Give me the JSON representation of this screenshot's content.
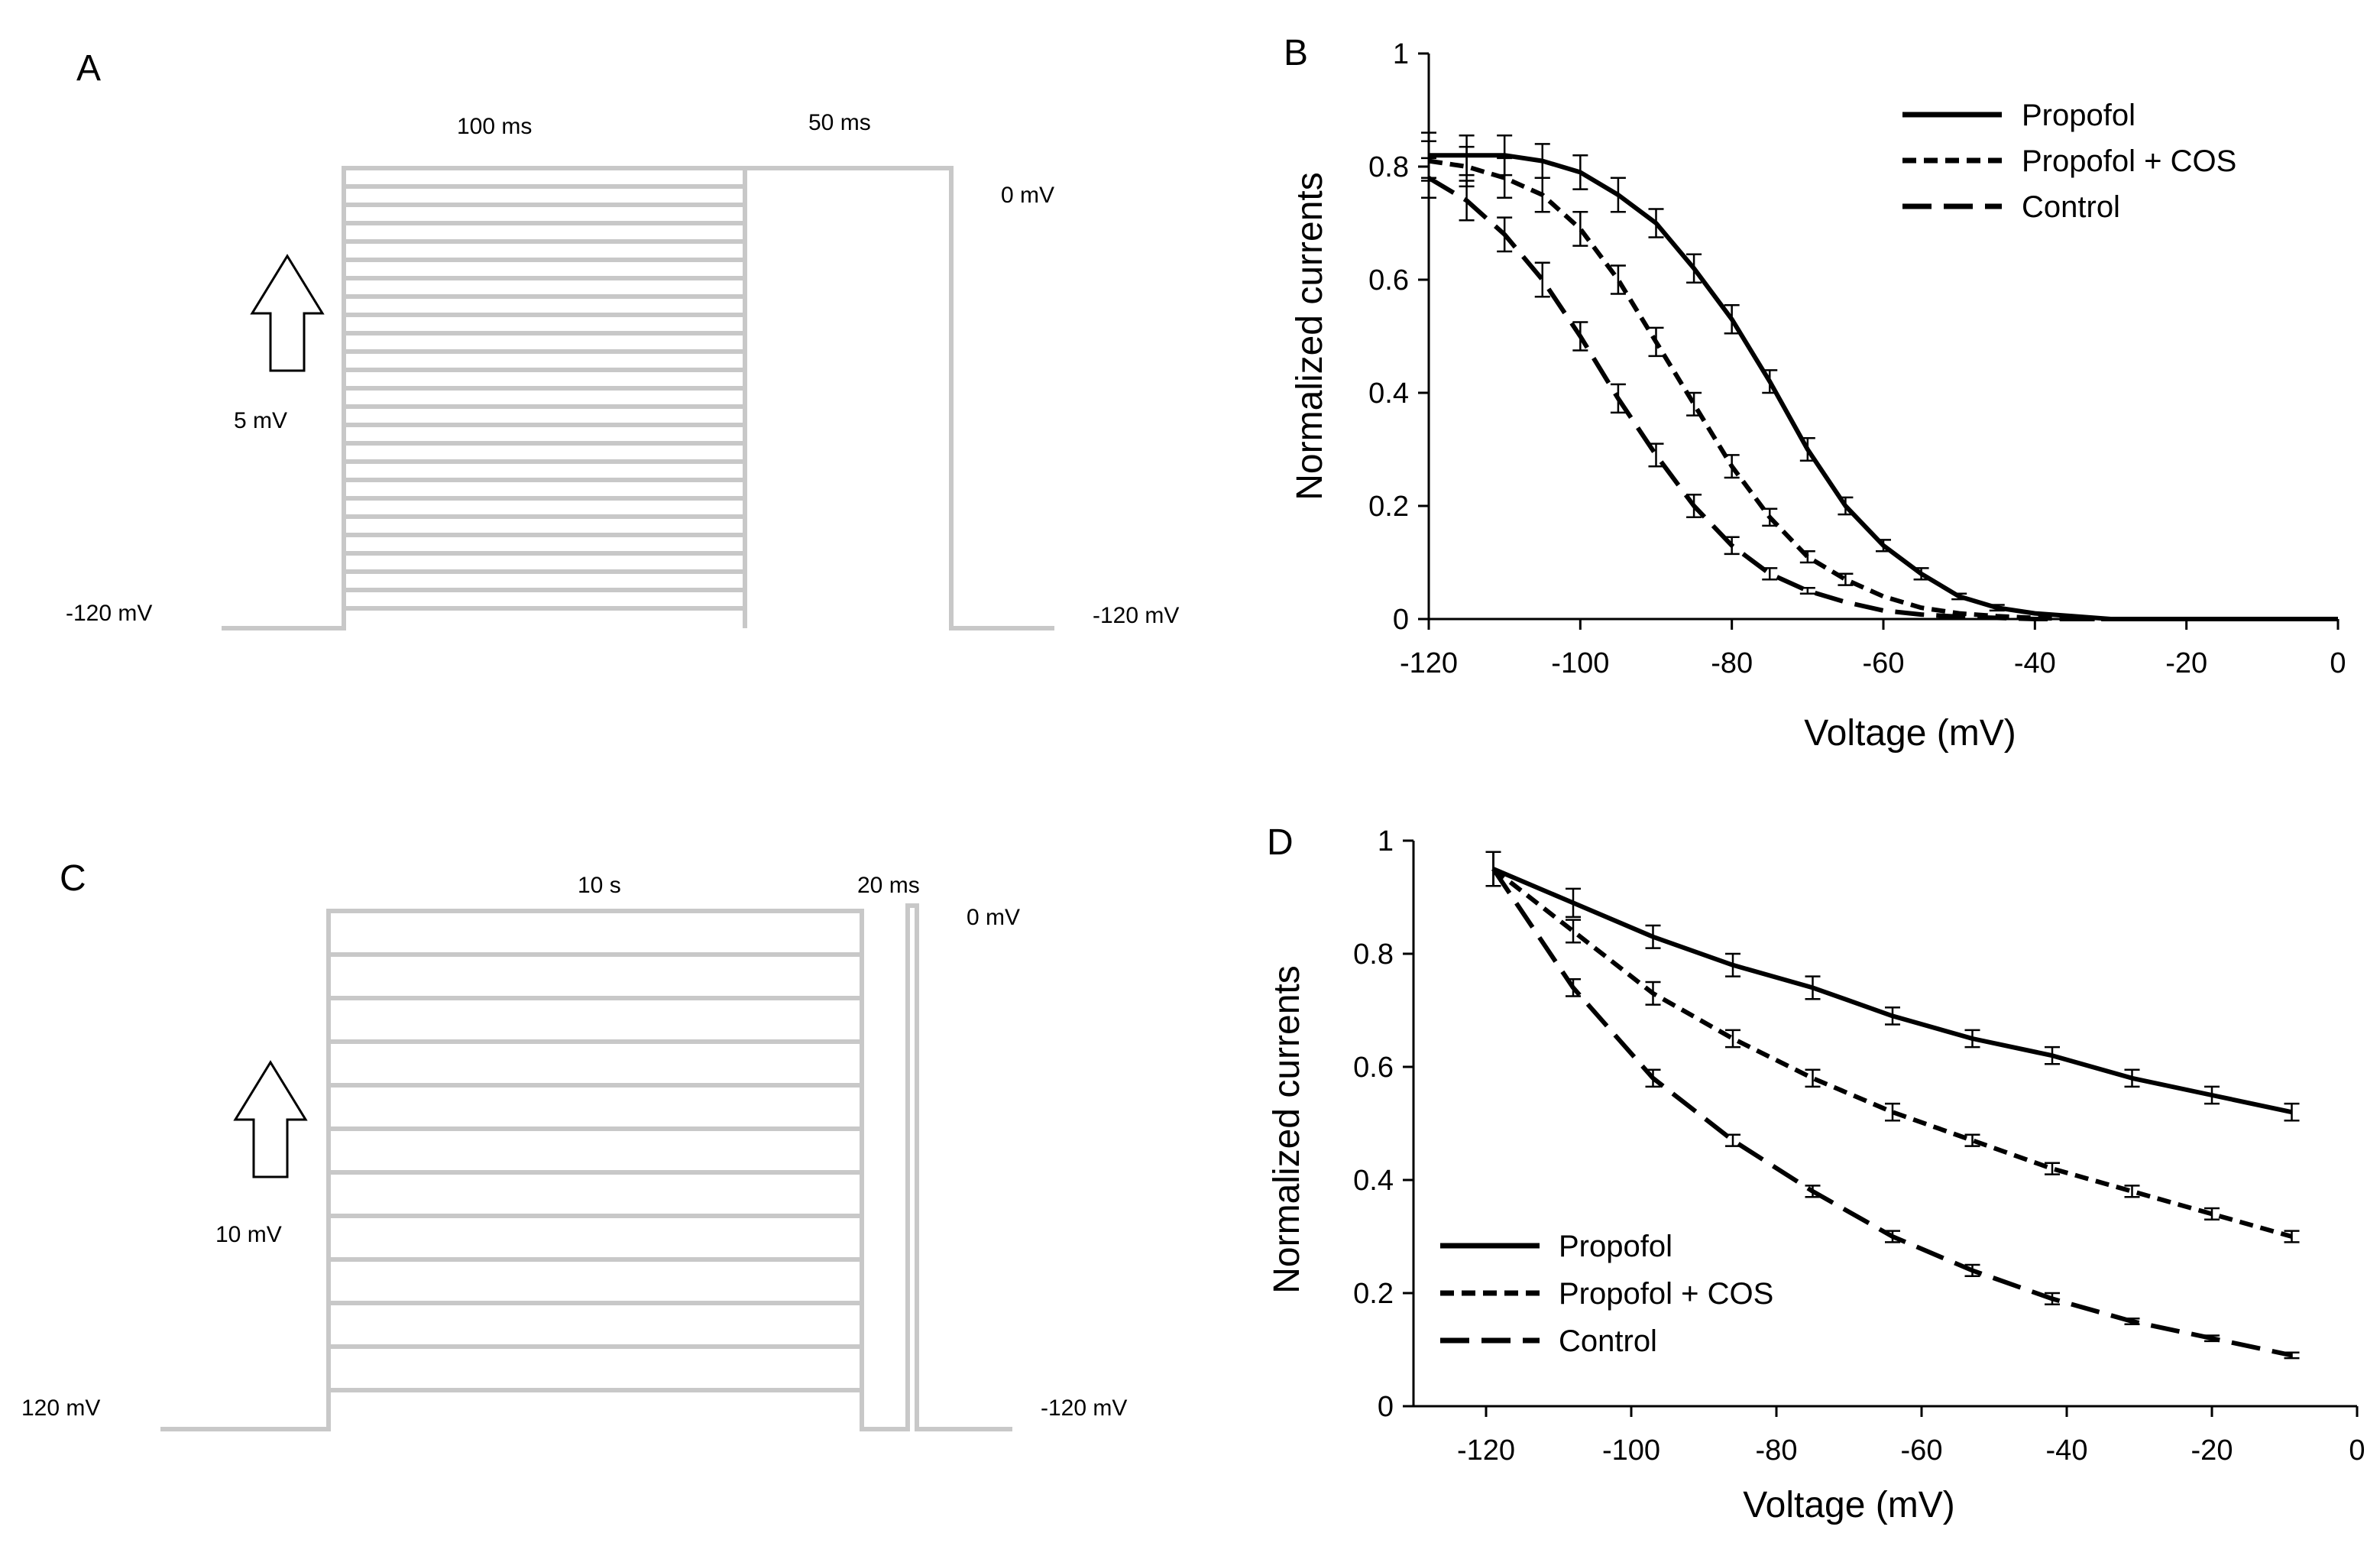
{
  "panels": {
    "A": {
      "letter": "A",
      "labels": {
        "step_duration": "100 ms",
        "test_duration": "50  ms",
        "test_potential": "0 mV",
        "step_increment": "5 mV",
        "holding_left": "-120 mV",
        "holding_right": "-120 mV"
      }
    },
    "C": {
      "letter": "C",
      "labels": {
        "step_duration": "10 s",
        "test_duration": "20 ms",
        "test_potential": "0 mV",
        "step_increment": "10 mV",
        "holding_left": "120 mV",
        "holding_right": "-120 mV"
      }
    }
  },
  "colors": {
    "trace": "#000000",
    "protocol": "#c8c8c8"
  },
  "chart_data": [
    {
      "panel": "B",
      "type": "line",
      "xlabel": "Voltage (mV)",
      "ylabel": "Normalized currents",
      "xlim": [
        -120,
        0
      ],
      "ylim": [
        0,
        1
      ],
      "xticks": [
        -120,
        -100,
        -80,
        -60,
        -40,
        -20,
        0
      ],
      "yticks": [
        0,
        0.2,
        0.4,
        0.6,
        0.8,
        1
      ],
      "legend_position": "top-right",
      "series": [
        {
          "name": "Propofol",
          "style": "solid",
          "x": [
            -120,
            -115,
            -110,
            -105,
            -100,
            -95,
            -90,
            -85,
            -80,
            -75,
            -70,
            -65,
            -60,
            -55,
            -50,
            -45,
            -40,
            -35,
            -30,
            -25,
            -20,
            -15,
            -10,
            -5,
            0
          ],
          "y": [
            0.82,
            0.82,
            0.82,
            0.81,
            0.79,
            0.75,
            0.7,
            0.62,
            0.53,
            0.42,
            0.3,
            0.2,
            0.13,
            0.08,
            0.04,
            0.02,
            0.01,
            0.005,
            0,
            0,
            0,
            0,
            0,
            0,
            0
          ],
          "error": [
            0.04,
            0.035,
            0.035,
            0.03,
            0.03,
            0.03,
            0.025,
            0.025,
            0.025,
            0.02,
            0.02,
            0.015,
            0.01,
            0.01,
            0.005,
            0.005,
            0.003,
            0.002,
            0,
            0,
            0,
            0,
            0,
            0,
            0
          ],
          "error_at": [
            -120,
            -115,
            -110,
            -105,
            -100,
            -95,
            -90,
            -85,
            -80,
            -75,
            -70,
            -65,
            -60,
            -55,
            -50,
            -45
          ]
        },
        {
          "name": "Propofol + COS",
          "style": "dashed",
          "x": [
            -120,
            -115,
            -110,
            -105,
            -100,
            -95,
            -90,
            -85,
            -80,
            -75,
            -70,
            -65,
            -60,
            -55,
            -50,
            -45,
            -40,
            -35,
            -30,
            -25,
            -20,
            -15,
            -10,
            -5,
            0
          ],
          "y": [
            0.81,
            0.8,
            0.78,
            0.75,
            0.69,
            0.6,
            0.49,
            0.38,
            0.27,
            0.18,
            0.11,
            0.07,
            0.04,
            0.02,
            0.01,
            0.005,
            0.002,
            0,
            0,
            0,
            0,
            0,
            0,
            0,
            0
          ],
          "error": [
            0.035,
            0.035,
            0.035,
            0.03,
            0.03,
            0.025,
            0.025,
            0.02,
            0.02,
            0.015,
            0.01,
            0.01,
            0.005,
            0.005,
            0.003,
            0.002,
            0,
            0,
            0,
            0,
            0,
            0,
            0,
            0,
            0
          ],
          "error_at": [
            -120,
            -115,
            -110,
            -105,
            -100,
            -95,
            -90,
            -85,
            -80,
            -75,
            -70,
            -65
          ]
        },
        {
          "name": "Control",
          "style": "long-dash",
          "x": [
            -120,
            -115,
            -110,
            -105,
            -100,
            -95,
            -90,
            -85,
            -80,
            -75,
            -70,
            -65,
            -60,
            -55,
            -50,
            -45,
            -40,
            -35,
            -30,
            -25,
            -20,
            -15,
            -10,
            -5,
            0
          ],
          "y": [
            0.78,
            0.74,
            0.68,
            0.6,
            0.5,
            0.39,
            0.29,
            0.2,
            0.13,
            0.08,
            0.05,
            0.03,
            0.015,
            0.008,
            0.004,
            0.002,
            0,
            0,
            0,
            0,
            0,
            0,
            0,
            0,
            0
          ],
          "error": [
            0.035,
            0.035,
            0.03,
            0.03,
            0.025,
            0.025,
            0.02,
            0.02,
            0.015,
            0.01,
            0.005,
            0.005,
            0.003,
            0,
            0,
            0,
            0,
            0,
            0,
            0,
            0,
            0,
            0,
            0,
            0
          ],
          "error_at": [
            -120,
            -115,
            -110,
            -105,
            -100,
            -95,
            -90,
            -85,
            -80,
            -75,
            -70
          ]
        }
      ]
    },
    {
      "panel": "D",
      "type": "line",
      "xlabel": "Voltage (mV)",
      "ylabel": "Normalized currents",
      "xlim": [
        -130,
        0
      ],
      "ylim": [
        0,
        1
      ],
      "xticks": [
        -120,
        -100,
        -80,
        -60,
        -40,
        -20,
        0
      ],
      "yticks": [
        0,
        0.2,
        0.4,
        0.6,
        0.8,
        1
      ],
      "legend_position": "bottom-left",
      "series": [
        {
          "name": "Propofol",
          "style": "solid",
          "x": [
            -119,
            -108,
            -97,
            -86,
            -75,
            -64,
            -53,
            -42,
            -31,
            -20,
            -9
          ],
          "y": [
            0.95,
            0.89,
            0.83,
            0.78,
            0.74,
            0.69,
            0.65,
            0.62,
            0.58,
            0.55,
            0.52
          ],
          "error": [
            0.03,
            0.025,
            0.02,
            0.02,
            0.02,
            0.015,
            0.015,
            0.015,
            0.015,
            0.015,
            0.015
          ],
          "error_at": [
            -119,
            -108,
            -97,
            -86,
            -75,
            -64,
            -53,
            -42,
            -31,
            -20,
            -9
          ]
        },
        {
          "name": "Propofol + COS",
          "style": "dashed",
          "x": [
            -119,
            -108,
            -97,
            -86,
            -75,
            -64,
            -53,
            -42,
            -31,
            -20,
            -9
          ],
          "y": [
            0.95,
            0.84,
            0.73,
            0.65,
            0.58,
            0.52,
            0.47,
            0.42,
            0.38,
            0.34,
            0.3
          ],
          "error": [
            0.03,
            0.02,
            0.02,
            0.015,
            0.015,
            0.015,
            0.01,
            0.01,
            0.01,
            0.01,
            0.01
          ],
          "error_at": [
            -119,
            -108,
            -97,
            -86,
            -75,
            -64,
            -53,
            -42,
            -31,
            -20,
            -9
          ]
        },
        {
          "name": "Control",
          "style": "long-dash",
          "x": [
            -119,
            -108,
            -97,
            -86,
            -75,
            -64,
            -53,
            -42,
            -31,
            -20,
            -9
          ],
          "y": [
            0.95,
            0.74,
            0.58,
            0.47,
            0.38,
            0.3,
            0.24,
            0.19,
            0.15,
            0.12,
            0.09
          ],
          "error": [
            0.03,
            0.015,
            0.015,
            0.01,
            0.01,
            0.01,
            0.01,
            0.01,
            0.005,
            0.005,
            0.005
          ],
          "error_at": [
            -119,
            -108,
            -97,
            -86,
            -75,
            -64,
            -53,
            -42,
            -31,
            -20,
            -9
          ]
        }
      ]
    }
  ]
}
